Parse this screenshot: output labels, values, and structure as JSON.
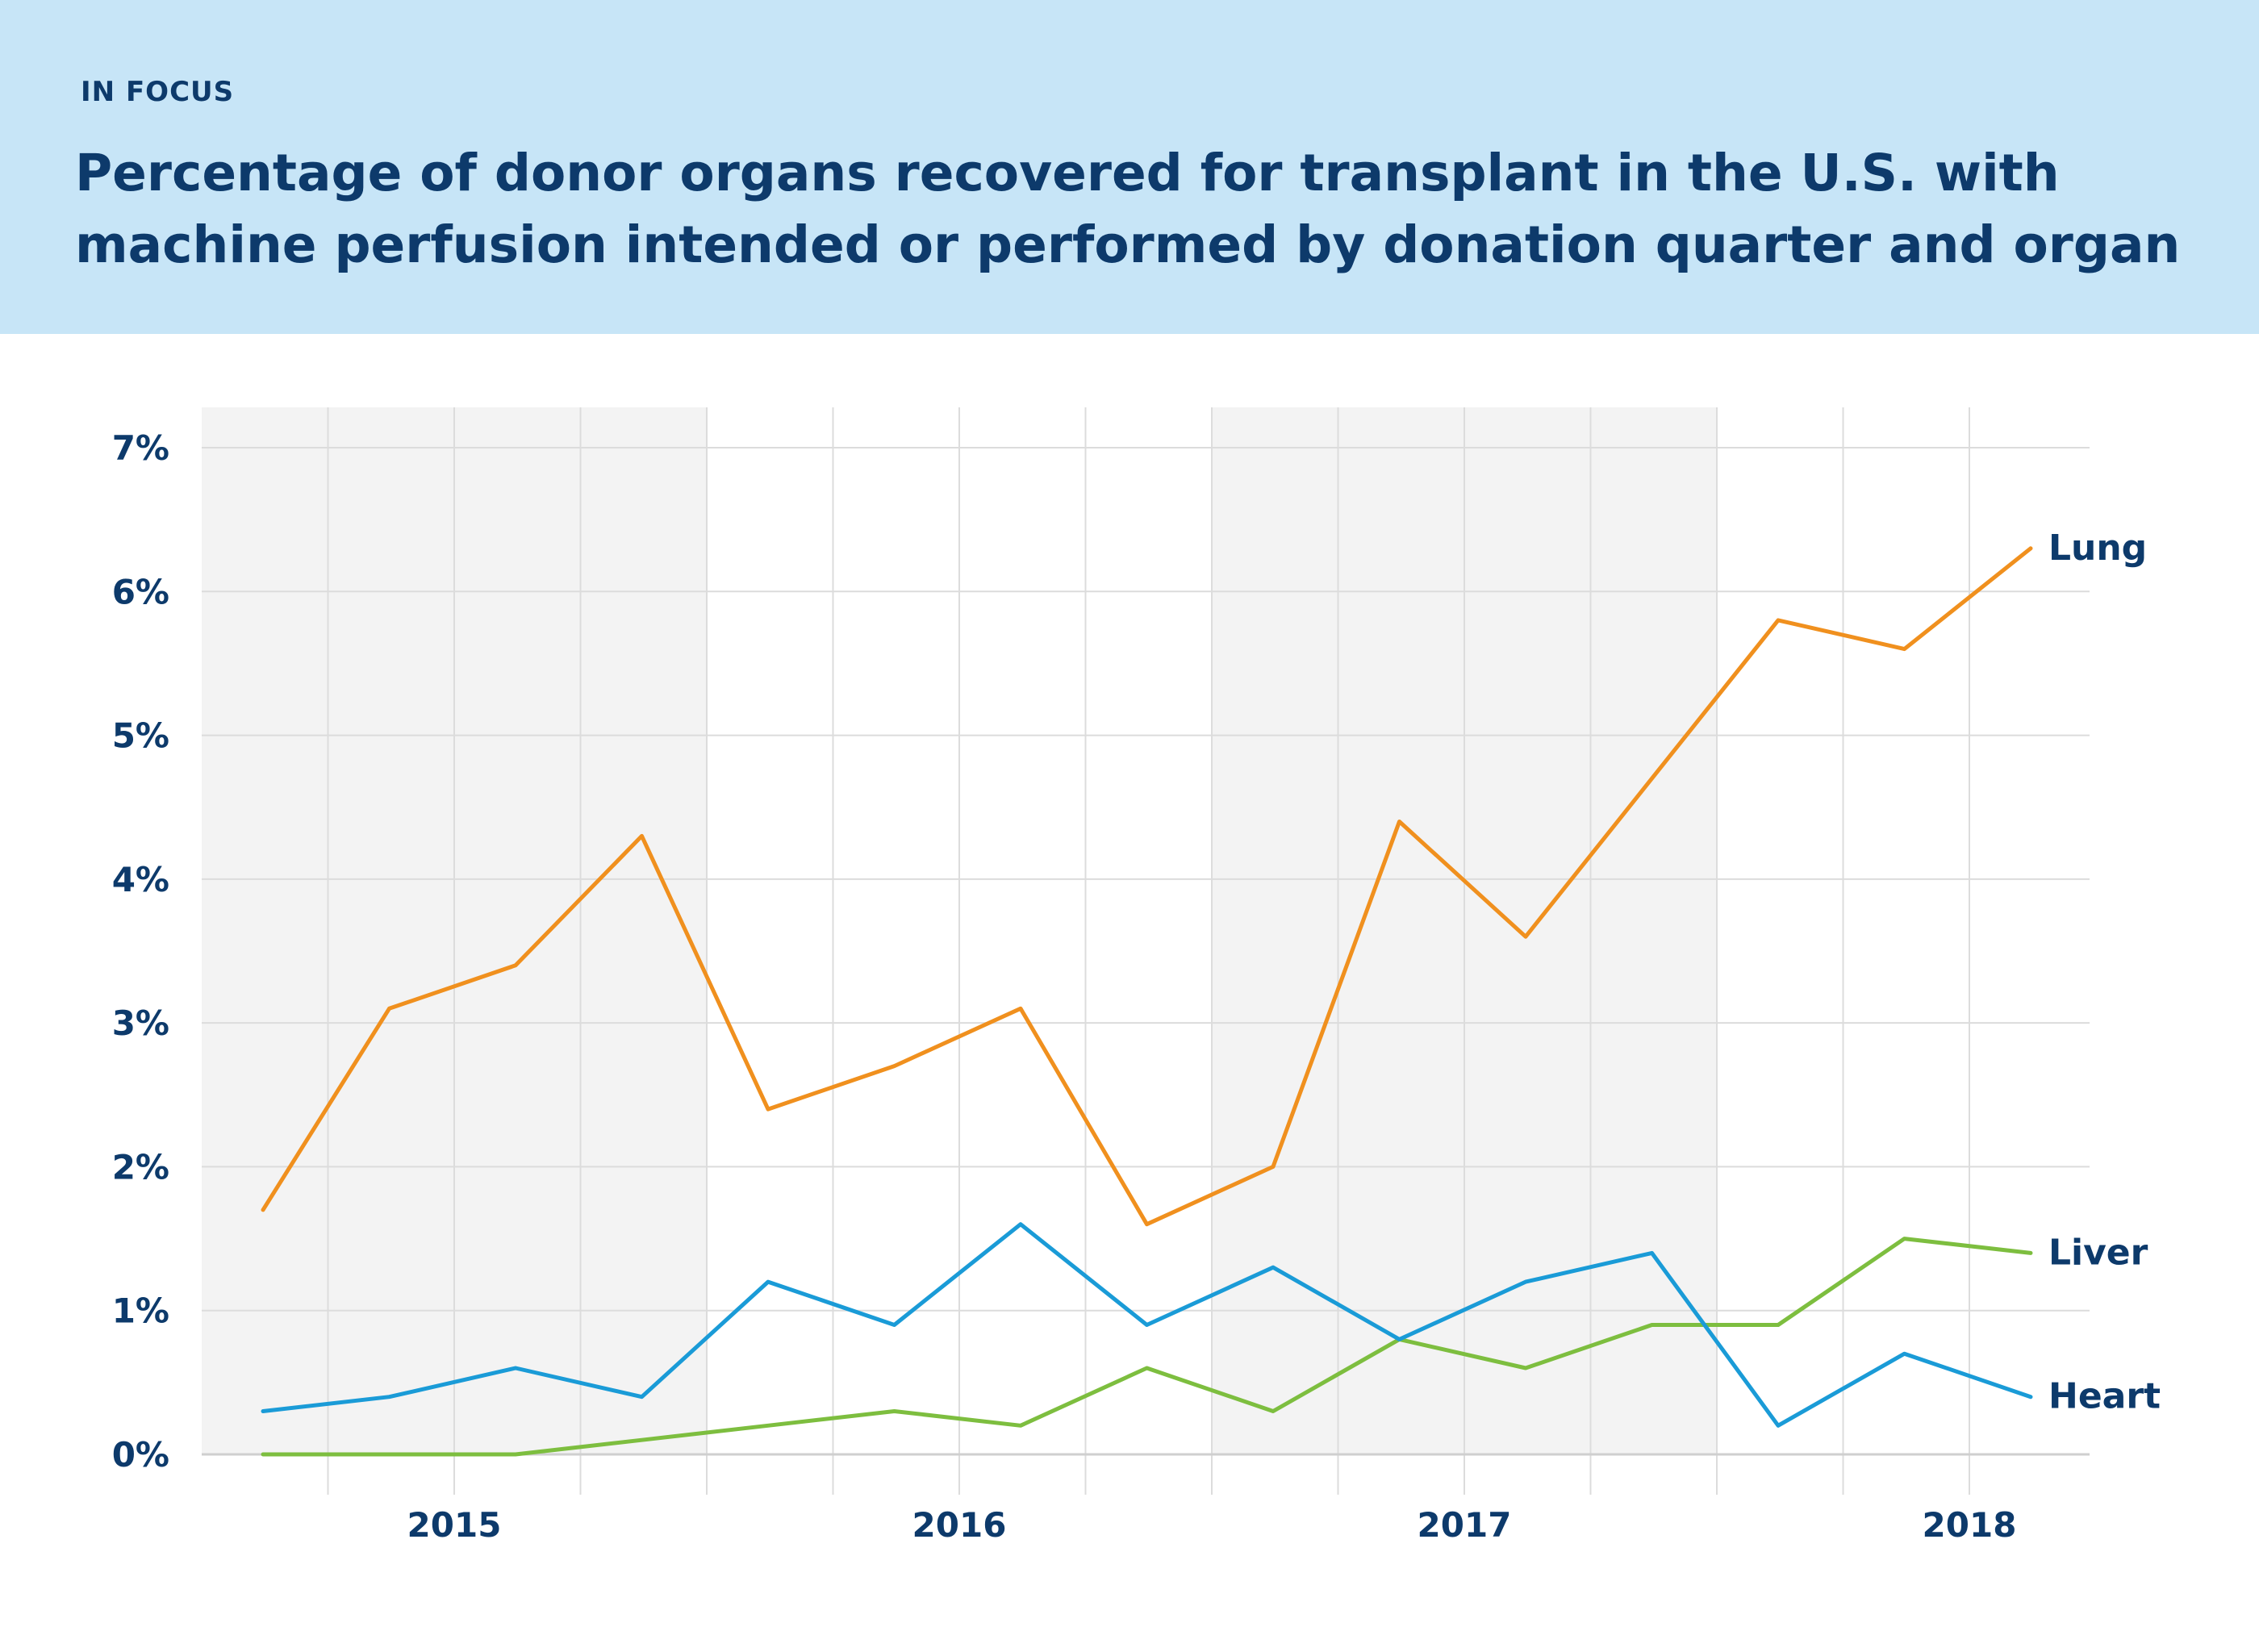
{
  "header": {
    "kicker": "IN FOCUS",
    "title": "Percentage of donor organs recovered for transplant in the U.S. with machine perfusion intended or performed by donation quarter and organ"
  },
  "colors": {
    "banner": "#c7e5f7",
    "text": "#0d3a6b",
    "grid": "#dcdcdc",
    "band": "#f3f3f3",
    "lung": "#f0901e",
    "heart": "#1a9bd7",
    "liver": "#7dbe3f"
  },
  "chart_data": {
    "type": "line",
    "title": "",
    "xlabel": "",
    "ylabel": "",
    "x_ticks": [
      "2015",
      "2016",
      "2017",
      "2018"
    ],
    "y_ticks": [
      "0%",
      "1%",
      "2%",
      "3%",
      "4%",
      "5%",
      "6%",
      "7%"
    ],
    "ylim": [
      0,
      7
    ],
    "grid": true,
    "legend": "direct labels at line ends (right)",
    "categories": [
      "2015 Q1",
      "2015 Q2",
      "2015 Q3",
      "2015 Q4",
      "2016 Q1",
      "2016 Q2",
      "2016 Q3",
      "2016 Q4",
      "2017 Q1",
      "2017 Q2",
      "2017 Q3",
      "2017 Q4",
      "2018 Q1",
      "2018 Q2",
      "2018 Q3"
    ],
    "series": [
      {
        "name": "Lung",
        "color": "#f0901e",
        "values": [
          1.7,
          3.1,
          3.4,
          4.3,
          2.4,
          2.7,
          3.1,
          1.6,
          2.0,
          4.4,
          3.6,
          4.7,
          5.8,
          5.6,
          6.3
        ]
      },
      {
        "name": "Liver",
        "color": "#7dbe3f",
        "values": [
          0.0,
          0.0,
          0.0,
          0.1,
          0.2,
          0.3,
          0.2,
          0.6,
          0.3,
          0.8,
          0.6,
          0.9,
          0.9,
          1.5,
          1.4
        ]
      },
      {
        "name": "Heart",
        "color": "#1a9bd7",
        "values": [
          0.3,
          0.4,
          0.6,
          0.4,
          1.2,
          0.9,
          1.6,
          0.9,
          1.3,
          0.8,
          1.2,
          1.4,
          0.2,
          0.7,
          0.4
        ]
      }
    ]
  }
}
